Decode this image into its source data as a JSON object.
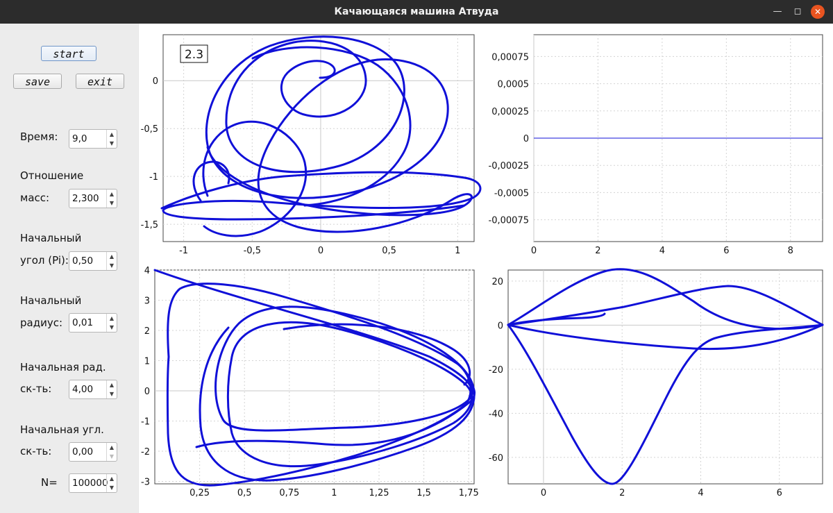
{
  "window": {
    "title": "Качающаяся машина Атвуда"
  },
  "buttons": {
    "start": "start",
    "save": "save",
    "exit": "exit"
  },
  "fields": {
    "time": {
      "label": "Время:",
      "value": "9,0"
    },
    "mass_ratio": {
      "label1": "Отношение",
      "label2": "масс:",
      "value": "2,300"
    },
    "init_angle": {
      "label1": "Начальный",
      "label2": "угол (Pi):",
      "value": "0,50"
    },
    "init_radius": {
      "label1": "Начальный",
      "label2": "радиус:",
      "value": "0,01"
    },
    "init_rad_vel": {
      "label1": "Начальная рад.",
      "label2": "ск-ть:",
      "value": "4,00"
    },
    "init_ang_vel": {
      "label1": "Начальная угл.",
      "label2": "ск-ть:",
      "value": "0,00"
    },
    "n": {
      "label": "N=",
      "value": "100000"
    }
  },
  "colors": {
    "curve": "#1010d8",
    "titlebar": "#2c2c2c",
    "close": "#e95420"
  },
  "chart_data": [
    {
      "type": "line",
      "name": "trajectory",
      "annotation": "2.3",
      "xlim": [
        -1.15,
        1.12
      ],
      "ylim": [
        -1.68,
        0.48
      ],
      "xticks": [
        -1,
        -0.5,
        0,
        0.5,
        1
      ],
      "xtick_labels": [
        "-1",
        "-0,5",
        "0",
        "0,5",
        "1"
      ],
      "yticks": [
        -1.5,
        -1,
        -0.5,
        0
      ],
      "ytick_labels": [
        "-1,5",
        "-1",
        "-0,5",
        "0"
      ],
      "grid": true
    },
    {
      "type": "line",
      "name": "error",
      "xlim": [
        0,
        9
      ],
      "ylim": [
        -0.00095,
        0.00095
      ],
      "xticks": [
        0,
        2,
        4,
        6,
        8
      ],
      "xtick_labels": [
        "0",
        "2",
        "4",
        "6",
        "8"
      ],
      "yticks": [
        0.00075,
        0.0005,
        0.00025,
        0,
        -0.00025,
        -0.0005,
        -0.00075
      ],
      "ytick_labels": [
        "0,00075",
        "0,0005",
        "0,00025",
        "0",
        "-0,00025",
        "-0,0005",
        "-0,00075"
      ],
      "series": [
        {
          "x": [
            0,
            9
          ],
          "y": [
            0,
            0
          ]
        }
      ],
      "grid": true
    },
    {
      "type": "line",
      "name": "radial phase",
      "xlim": [
        0,
        1.78
      ],
      "ylim": [
        -3.08,
        4.0
      ],
      "xticks": [
        0.25,
        0.5,
        0.75,
        1,
        1.25,
        1.5,
        1.75
      ],
      "xtick_labels": [
        "0,25",
        "0,5",
        "0,75",
        "1",
        "1,25",
        "1,5",
        "1,75"
      ],
      "yticks": [
        4,
        3,
        2,
        1,
        0,
        -1,
        -2,
        -3
      ],
      "ytick_labels": [
        "4",
        "3",
        "2",
        "1",
        "0",
        "-1",
        "-2",
        "-3"
      ],
      "grid": true
    },
    {
      "type": "line",
      "name": "angular phase",
      "xlim": [
        -0.9,
        7.1
      ],
      "ylim": [
        -72,
        25
      ],
      "xticks": [
        0,
        2,
        4,
        6
      ],
      "xtick_labels": [
        "0",
        "2",
        "4",
        "6"
      ],
      "yticks": [
        20,
        0,
        -20,
        -40,
        -60
      ],
      "ytick_labels": [
        "20",
        "0",
        "-20",
        "-40",
        "-60"
      ],
      "grid": true
    }
  ]
}
